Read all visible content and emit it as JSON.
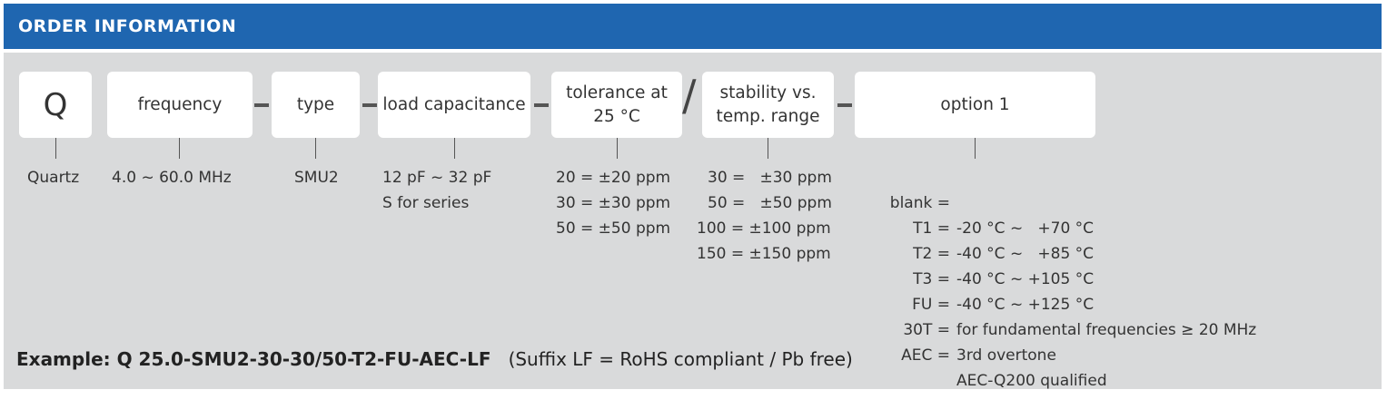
{
  "header": {
    "title": "ORDER INFORMATION"
  },
  "boxes": {
    "q": "Q",
    "frequency": "frequency",
    "type": "type",
    "load": "load capacitance",
    "tolerance_l1": "tolerance at",
    "tolerance_l2": "25 °C",
    "stability_l1": "stability vs.",
    "stability_l2": "temp. range",
    "option": "option 1"
  },
  "values": {
    "q": "Quartz",
    "frequency": "4.0 ~ 60.0 MHz",
    "type": "SMU2",
    "load": [
      "12 pF ~ 32 pF",
      "S for series"
    ],
    "tolerance": [
      "20 = ±20 ppm",
      "30 = ±30 ppm",
      "50 = ±50 ppm"
    ],
    "stability": [
      "30 =   ±30 ppm",
      "50 =   ±50 ppm",
      "100 = ±100 ppm",
      "150 = ±150 ppm"
    ],
    "options": [
      {
        "code": "blank =",
        "desc": "-20 °C ~   +70 °C"
      },
      {
        "code": "T1 =",
        "desc": "-40 °C ~   +85 °C"
      },
      {
        "code": "T2 =",
        "desc": "-40 °C ~ +105 °C"
      },
      {
        "code": "T3 =",
        "desc": "-40 °C ~ +125 °C"
      },
      {
        "code": "FU =",
        "desc": "for fundamental frequencies ≥ 20 MHz"
      },
      {
        "code": "30T =",
        "desc": "3rd overtone"
      },
      {
        "code": "AEC =",
        "desc": "AEC-Q200 qualified"
      }
    ]
  },
  "separators": {
    "slash": "/"
  },
  "example": {
    "label": "Example: Q 25.0-SMU2-30-30/50-T2-FU-AEC-LF",
    "suffix": "(Suffix LF = RoHS compliant / Pb free)"
  }
}
